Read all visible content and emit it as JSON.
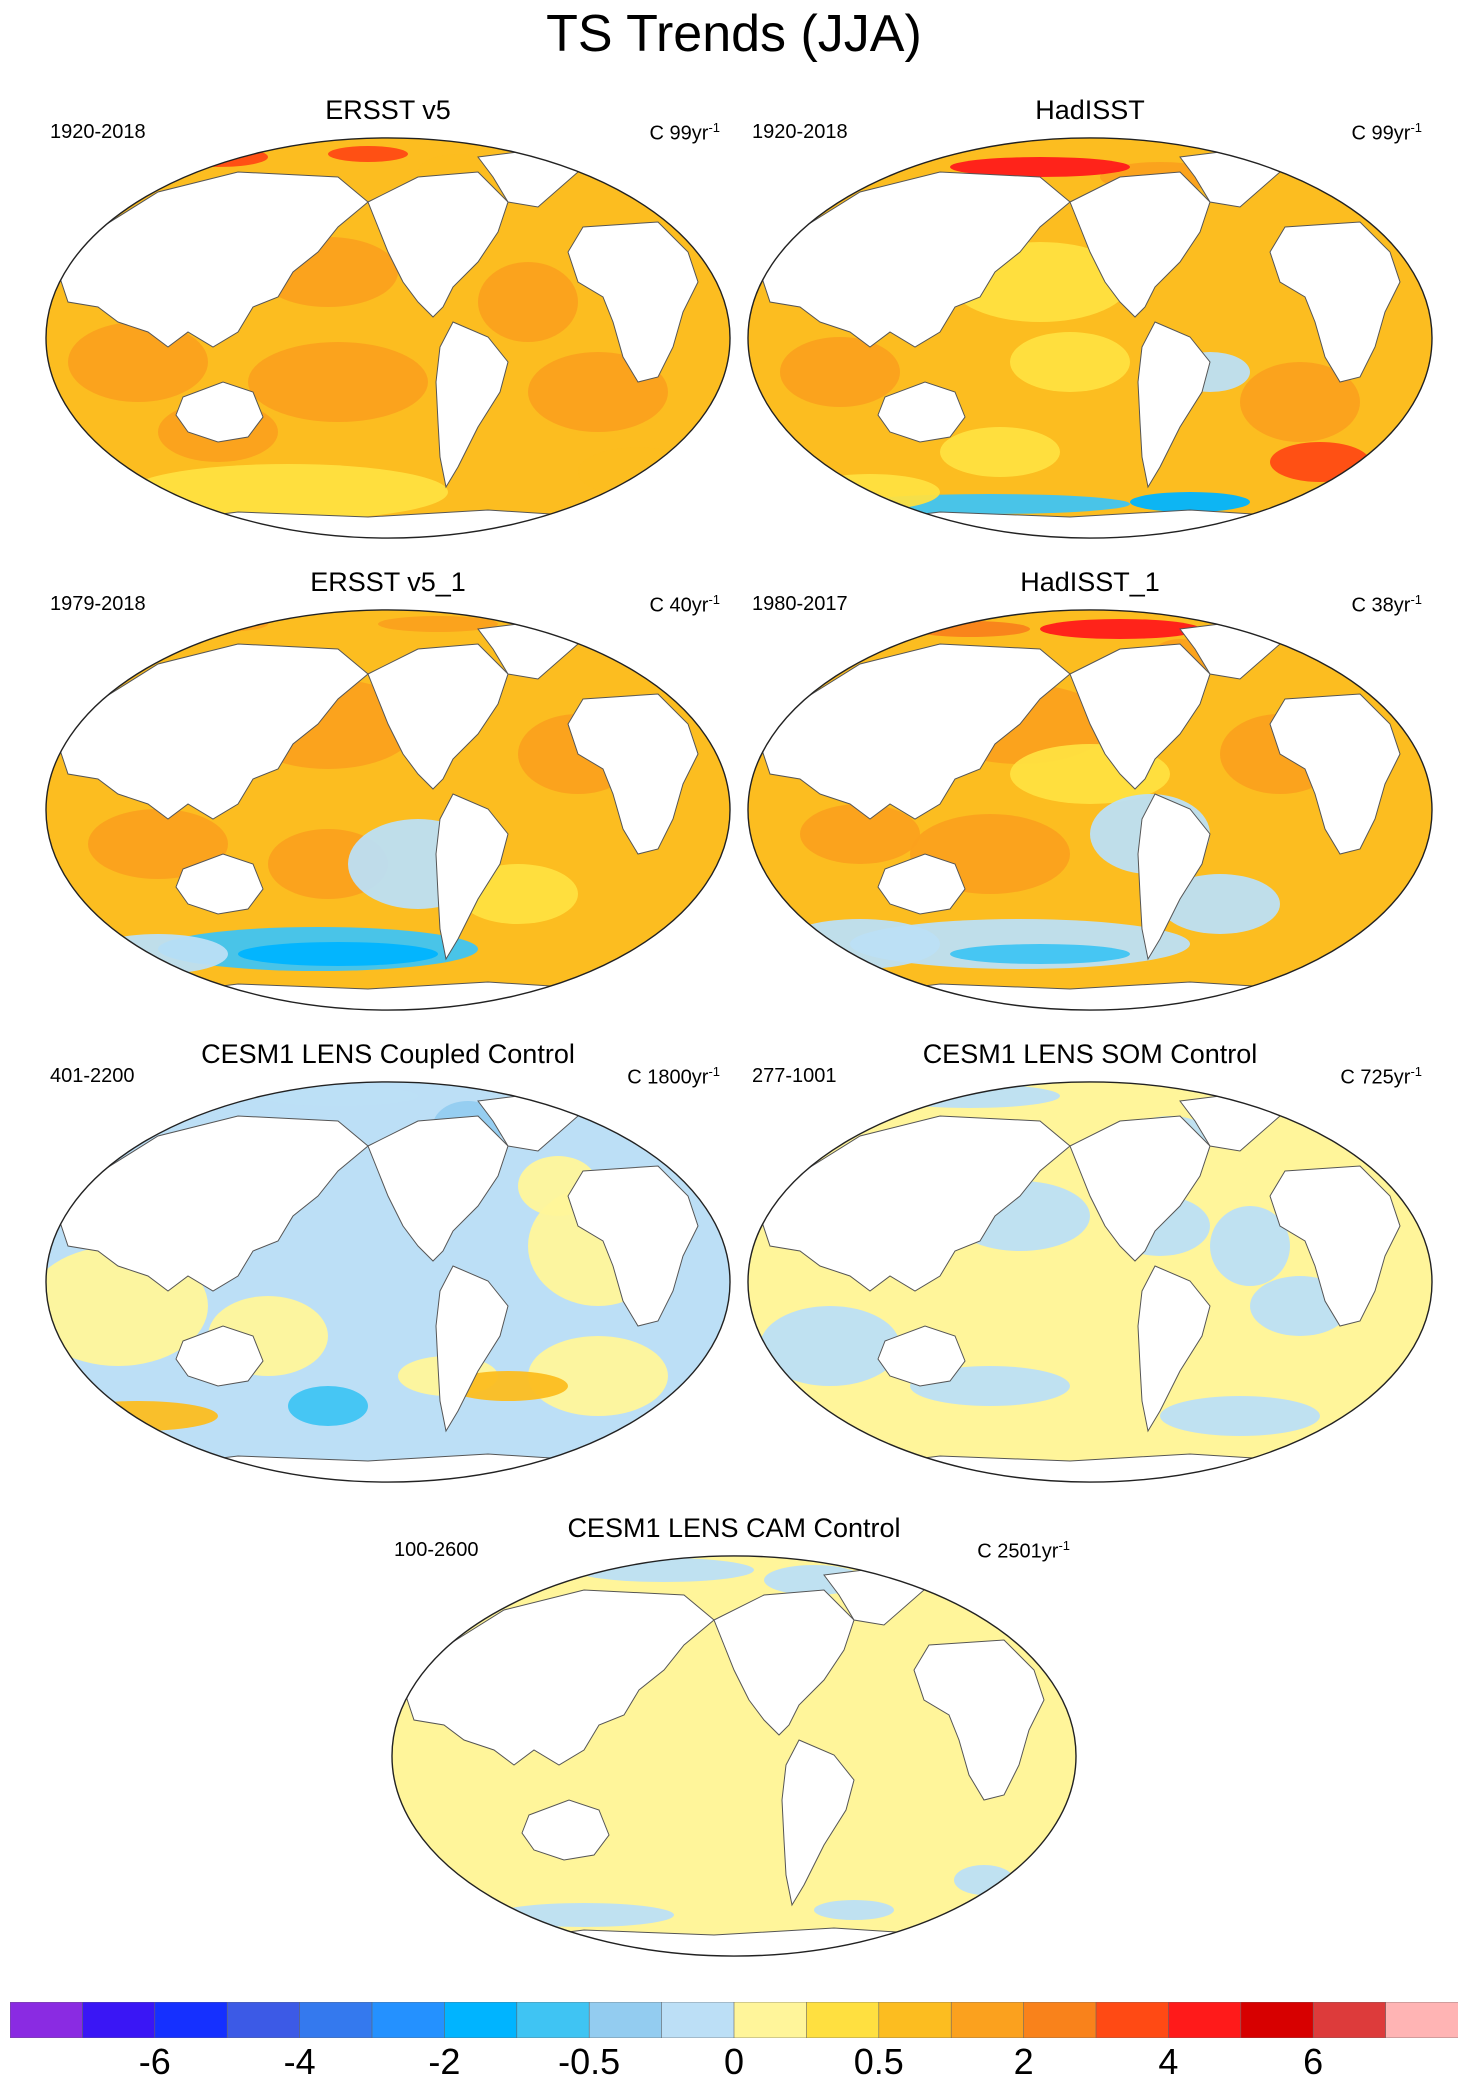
{
  "title": "TS Trends (JJA)",
  "panels": [
    {
      "name": "ERSST v5",
      "years": "1920-2018",
      "units": "C 99yr",
      "units_exp": "-1",
      "pattern": "warm"
    },
    {
      "name": "HadISST",
      "years": "1920-2018",
      "units": "C 99yr",
      "units_exp": "-1",
      "pattern": "warm-noisy"
    },
    {
      "name": "ERSST v5_1",
      "years": "1979-2018",
      "units": "C 40yr",
      "units_exp": "-1",
      "pattern": "recent"
    },
    {
      "name": "HadISST_1",
      "years": "1980-2017",
      "units": "C 38yr",
      "units_exp": "-1",
      "pattern": "recent-noisy"
    },
    {
      "name": "CESM1 LENS Coupled Control",
      "years": "401-2200",
      "units": "C 1800yr",
      "units_exp": "-1",
      "pattern": "coupled"
    },
    {
      "name": "CESM1 LENS SOM Control",
      "years": "277-1001",
      "units": "C 725yr",
      "units_exp": "-1",
      "pattern": "som"
    },
    {
      "name": "CESM1 LENS CAM Control",
      "years": "100-2600",
      "units": "C 2501yr",
      "units_exp": "-1",
      "pattern": "cam"
    }
  ],
  "colorbar": {
    "colors": [
      "#8a2be2",
      "#3a16f5",
      "#1530ff",
      "#3c5ae6",
      "#3479ee",
      "#2491ff",
      "#00b4ff",
      "#3fc4f3",
      "#93ccf0",
      "#bcdff6",
      "#fff59a",
      "#ffe040",
      "#fcbd20",
      "#fba11e",
      "#f9821b",
      "#ff4a14",
      "#ff1a1a",
      "#d70000",
      "#dd3b3b",
      "#ffb4b4"
    ],
    "labels": [
      {
        "text": "-6",
        "boundary": 2
      },
      {
        "text": "-4",
        "boundary": 4
      },
      {
        "text": "-2",
        "boundary": 6
      },
      {
        "text": "-0.5",
        "boundary": 8
      },
      {
        "text": "0",
        "boundary": 10
      },
      {
        "text": "0.5",
        "boundary": 12
      },
      {
        "text": "2",
        "boundary": 14
      },
      {
        "text": "4",
        "boundary": 16
      },
      {
        "text": "6",
        "boundary": 18
      }
    ]
  }
}
